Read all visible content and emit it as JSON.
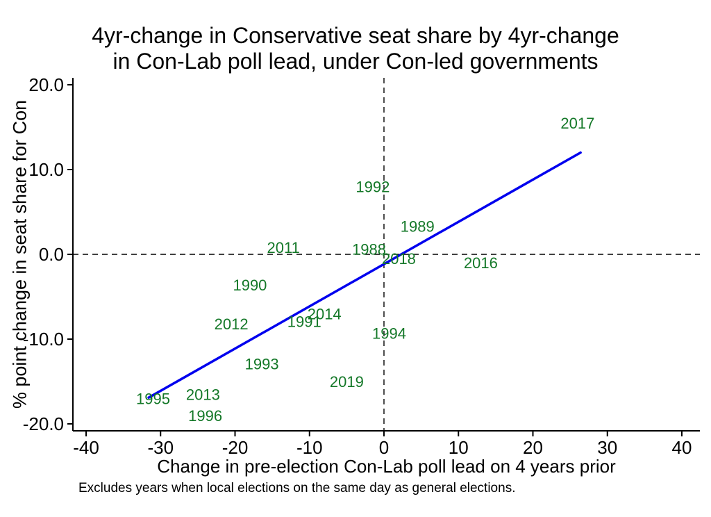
{
  "chart_data": {
    "type": "scatter",
    "title": "4yr-change in Conservative seat share by 4yr-change in Con-Lab poll lead, under Con-led governments",
    "title_line1": "4yr-change in Conservative seat share by 4yr-change",
    "title_line2": "in Con-Lab poll lead, under Con-led governments",
    "xlabel": "Change in pre-election Con-Lab poll lead on 4 years prior",
    "ylabel": "% point change in seat share for Con",
    "note": "Excludes years when local elections on the same day as general elections.",
    "xlim": [
      -40,
      40
    ],
    "ylim": [
      -20,
      20
    ],
    "xticks": [
      -40,
      -30,
      -20,
      -10,
      0,
      10,
      20,
      30,
      40
    ],
    "xtick_labels": [
      "-40",
      "-30",
      "-20",
      "-10",
      "0",
      "10",
      "20",
      "30",
      "40"
    ],
    "yticks": [
      -20,
      -10,
      0,
      10,
      20
    ],
    "ytick_labels": [
      "-20.0",
      "-10.0",
      "0.0",
      "10.0",
      "20.0"
    ],
    "grid": false,
    "legend": "none",
    "marker_style": "year-text-labels",
    "label_color": "#147828",
    "line_color": "#0000ee",
    "axis_color": "#000000",
    "reference_lines": {
      "vertical_x": 0,
      "horizontal_y": 0,
      "style": "dashed",
      "color": "#000000"
    },
    "fit_line": {
      "x_start": -31.6,
      "y_start": -16.9,
      "x_end": 26.4,
      "y_end": 12.0
    },
    "points": [
      {
        "label": "1988",
        "x": -2,
        "y": 0.6
      },
      {
        "label": "1989",
        "x": 4.5,
        "y": 3.3
      },
      {
        "label": "1990",
        "x": -18,
        "y": -3.6
      },
      {
        "label": "1991",
        "x": -10.7,
        "y": -7.9
      },
      {
        "label": "1992",
        "x": -1.5,
        "y": 8
      },
      {
        "label": "1993",
        "x": -16.4,
        "y": -12.9
      },
      {
        "label": "1994",
        "x": 0.7,
        "y": -9.3
      },
      {
        "label": "1995",
        "x": -31,
        "y": -17
      },
      {
        "label": "1996",
        "x": -24,
        "y": -19
      },
      {
        "label": "2011",
        "x": -13.5,
        "y": 0.8
      },
      {
        "label": "2012",
        "x": -20.5,
        "y": -8.2
      },
      {
        "label": "2013",
        "x": -24.3,
        "y": -16.5
      },
      {
        "label": "2014",
        "x": -8,
        "y": -7
      },
      {
        "label": "2016",
        "x": 13,
        "y": -1
      },
      {
        "label": "2017",
        "x": 26,
        "y": 15.5
      },
      {
        "label": "2018",
        "x": 2,
        "y": -0.5
      },
      {
        "label": "2019",
        "x": -5,
        "y": -15
      }
    ]
  }
}
